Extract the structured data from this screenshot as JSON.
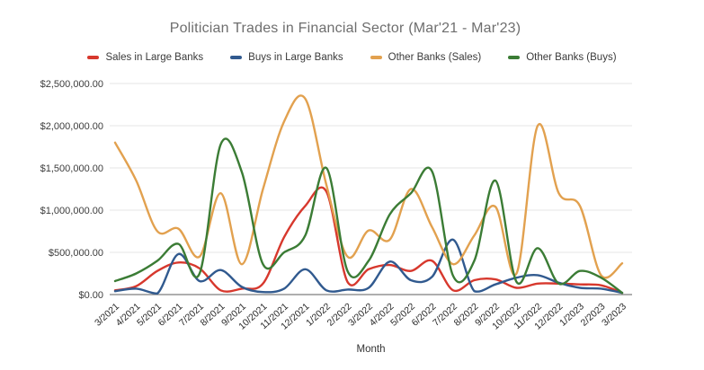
{
  "chart_data": {
    "type": "line",
    "title": "Politician Trades in Financial Sector (Mar'21 - Mar'23)",
    "xlabel": "Month",
    "ylabel": "",
    "curve": "smooth",
    "grid": true,
    "legend_position": "top",
    "ylim": [
      0,
      2500000
    ],
    "y_ticks": [
      "$0.00",
      "$500,000.00",
      "$1,000,000.00",
      "$1,500,000.00",
      "$2,000,000.00",
      "$2,500,000.00"
    ],
    "x_categories": [
      "3/2021",
      "4/2021",
      "5/2021",
      "6/2021",
      "7/2021",
      "8/2021",
      "9/2021",
      "10/2021",
      "11/2021",
      "12/2021",
      "1/2022",
      "2/2022",
      "3/2022",
      "4/2022",
      "5/2022",
      "6/2022",
      "7/2022",
      "8/2022",
      "9/2022",
      "10/2022",
      "11/2022",
      "12/2022",
      "1/2023",
      "2/2023",
      "3/2023"
    ],
    "series": [
      {
        "name": "Sales in Large Banks",
        "color": "#d7382d",
        "values": [
          50000,
          100000,
          280000,
          380000,
          310000,
          50000,
          70000,
          130000,
          680000,
          1050000,
          1220000,
          150000,
          300000,
          350000,
          280000,
          400000,
          50000,
          170000,
          180000,
          80000,
          130000,
          130000,
          120000,
          110000,
          20000
        ]
      },
      {
        "name": "Buys in Large Banks",
        "color": "#315a8f",
        "values": [
          40000,
          70000,
          10000,
          480000,
          160000,
          290000,
          90000,
          30000,
          70000,
          300000,
          50000,
          60000,
          80000,
          390000,
          170000,
          210000,
          650000,
          40000,
          120000,
          200000,
          230000,
          140000,
          80000,
          70000,
          20000
        ]
      },
      {
        "name": "Other Banks (Sales)",
        "color": "#e2a14f",
        "values": [
          1800000,
          1350000,
          750000,
          780000,
          450000,
          1200000,
          360000,
          1250000,
          2050000,
          2320000,
          1300000,
          450000,
          760000,
          650000,
          1250000,
          800000,
          360000,
          700000,
          1040000,
          250000,
          2000000,
          1200000,
          1050000,
          230000,
          370000
        ]
      },
      {
        "name": "Other Banks (Buys)",
        "color": "#3b7c35",
        "values": [
          160000,
          250000,
          400000,
          600000,
          250000,
          1780000,
          1450000,
          360000,
          500000,
          700000,
          1500000,
          280000,
          400000,
          950000,
          1200000,
          1460000,
          220000,
          400000,
          1350000,
          150000,
          550000,
          130000,
          280000,
          200000,
          20000
        ]
      }
    ]
  }
}
